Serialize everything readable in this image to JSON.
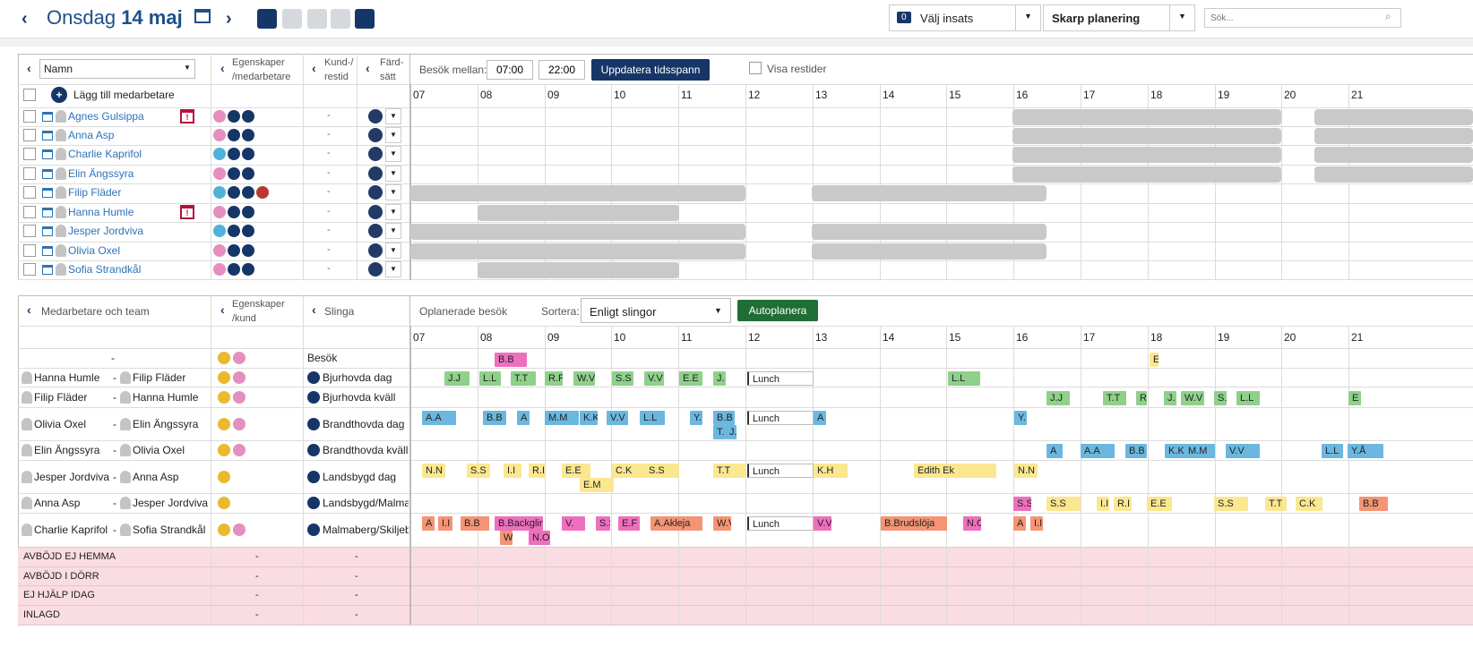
{
  "header": {
    "day": "Onsdag",
    "date": "14 maj",
    "insats_count": "0",
    "insats_label": "Välj insats",
    "plan_label": "Skarp planering",
    "search_placeholder": "Sök..."
  },
  "top": {
    "col_name": "Namn",
    "col_egen": "Egenskaper /medarbetare",
    "col_kund": "Kund-/ restid",
    "col_fard": "Färd- sätt",
    "besok_label": "Besök mellan:",
    "from": "07:00",
    "to": "22:00",
    "update": "Uppdatera tidsspann",
    "visa": "Visa restider",
    "add": "Lägg till medarbetare"
  },
  "hours": [
    "07",
    "08",
    "09",
    "10",
    "11",
    "12",
    "13",
    "14",
    "15",
    "16",
    "17",
    "18",
    "19",
    "20",
    "21"
  ],
  "staff": [
    {
      "name": "Agnes Gulsippa",
      "dash": "-",
      "g": "f",
      "cal": true
    },
    {
      "name": "Anna Asp",
      "dash": "-",
      "g": "f",
      "cal": false
    },
    {
      "name": "Charlie Kaprifol",
      "dash": "-",
      "g": "m",
      "cal": false
    },
    {
      "name": "Elin Ängssyra",
      "dash": "-",
      "g": "f",
      "cal": false
    },
    {
      "name": "Filip Fläder",
      "dash": "-",
      "g": "m",
      "cal": false
    },
    {
      "name": "Hanna Humle",
      "dash": "-",
      "g": "f",
      "cal": true
    },
    {
      "name": "Jesper Jordviva",
      "dash": "-",
      "g": "m",
      "cal": false
    },
    {
      "name": "Olivia Oxel",
      "dash": "-",
      "g": "f",
      "cal": false
    },
    {
      "name": "Sofia Strandkål",
      "dash": "-",
      "g": "f",
      "cal": false
    }
  ],
  "bottom": {
    "col_team": "Medarbetare och team",
    "col_egen": "Egenskaper /kund",
    "col_slinga": "Slinga",
    "oplanerade": "Oplanerade besök",
    "sortera": "Sortera:",
    "sort_value": "Enligt slingor",
    "auto": "Autoplanera"
  },
  "rows": [
    {
      "a": "-",
      "b": "",
      "slinga": "Besök"
    },
    {
      "a": "Hanna Humle",
      "b": "Filip Fläder",
      "slinga": "Bjurhovda dag"
    },
    {
      "a": "Filip Fläder",
      "b": "Hanna Humle",
      "slinga": "Bjurhovda kväll"
    },
    {
      "a": "Olivia Oxel",
      "b": "Elin Ängssyra",
      "slinga": "Brandthovda dag"
    },
    {
      "a": "Elin Ängssyra",
      "b": "Olivia Oxel",
      "slinga": "Brandthovda kväll"
    },
    {
      "a": "Jesper Jordviva",
      "b": "Anna Asp",
      "slinga": "Landsbygd dag"
    },
    {
      "a": "Anna Asp",
      "b": "Jesper Jordviva",
      "slinga": "Landsbygd/Malma"
    },
    {
      "a": "Charlie Kaprifol",
      "b": "Sofia Strandkål",
      "slinga": "Malmaberg/Skiljeb"
    }
  ],
  "status": [
    {
      "label": "AVBÖJD EJ HEMMA",
      "d1": "-",
      "d2": "-"
    },
    {
      "label": "AVBÖJD I DÖRR",
      "d1": "-",
      "d2": "-"
    },
    {
      "label": "EJ HJÄLP IDAG",
      "d1": "-",
      "d2": "-"
    },
    {
      "label": "INLAGD",
      "d1": "-",
      "d2": "-"
    }
  ],
  "visits": [
    "B.B",
    "E",
    "J.J",
    "L.L",
    "T.T",
    "R.F",
    "W.V",
    "S.S",
    "V.V",
    "E.E",
    "J.",
    "Lunch",
    "L.L",
    "J.J",
    "T.T",
    "R.",
    "J.",
    "W.V",
    "S.",
    "L.L",
    "E",
    "A.A",
    "B.B",
    "A",
    "M.M",
    "K.K",
    "V.V",
    "L.L",
    "Y.",
    "B.B",
    "T.",
    "J.",
    "Lunch",
    "A",
    "Y.",
    "A",
    "A.A",
    "B.B",
    "K.K",
    "M.M",
    "V.V",
    "L.L",
    "Y.Å",
    "N.N",
    "S.S",
    "I.I",
    "R.I",
    "E.E",
    "E.M",
    "C.K",
    "S.S",
    "T.T",
    "Lunch",
    "K.H",
    "Edith Ek",
    "N.N",
    "S.S",
    "S.S",
    "I.I",
    "R.I",
    "E.E",
    "S.S",
    "T.T",
    "C.K",
    "B.B",
    "A",
    "I.I",
    "B.B",
    "B.Backglim",
    "W",
    "N.O",
    "V.",
    "S.S",
    "E.F",
    "A.Akleja",
    "W.V",
    "Lunch",
    "V.V",
    "B.Brudslöja",
    "N.O",
    "A",
    "I.I"
  ],
  "colors": {
    "green": "#8fd08a",
    "blue": "#6bb7df",
    "yellow": "#fbe790",
    "salmon": "#f49474",
    "pink": "#ee6fbe",
    "navy": "#173668",
    "red_status": "#f9dde2"
  }
}
